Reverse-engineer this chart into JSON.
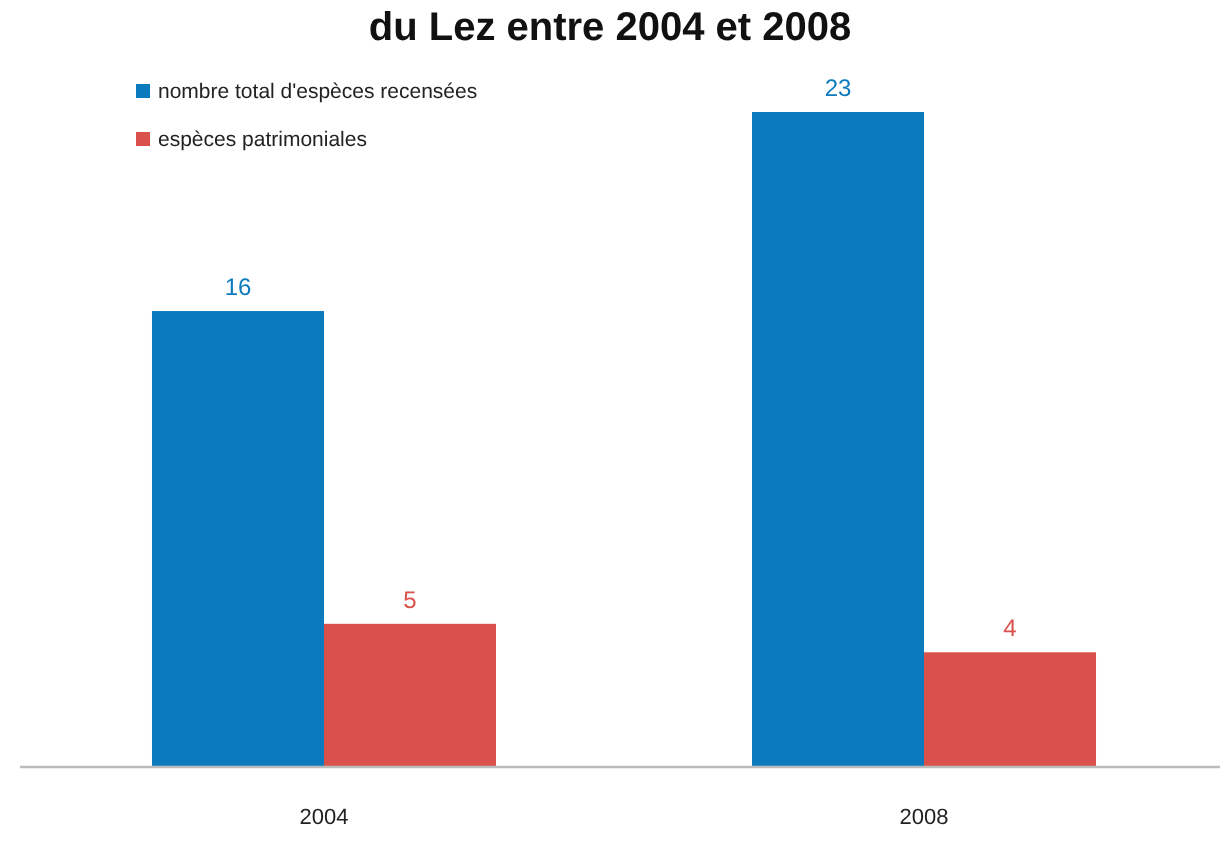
{
  "chart_data": {
    "type": "bar",
    "title": "du Lez entre 2004 et 2008",
    "categories": [
      "2004",
      "2008"
    ],
    "series": [
      {
        "name": "nombre total d'espèces recensées",
        "color": "#0b7bbd",
        "values": [
          16,
          23
        ]
      },
      {
        "name": "espèces patrimoniales",
        "color": "#d9514a",
        "values": [
          5,
          4
        ]
      }
    ],
    "data_labels": true,
    "legend": "top left"
  }
}
